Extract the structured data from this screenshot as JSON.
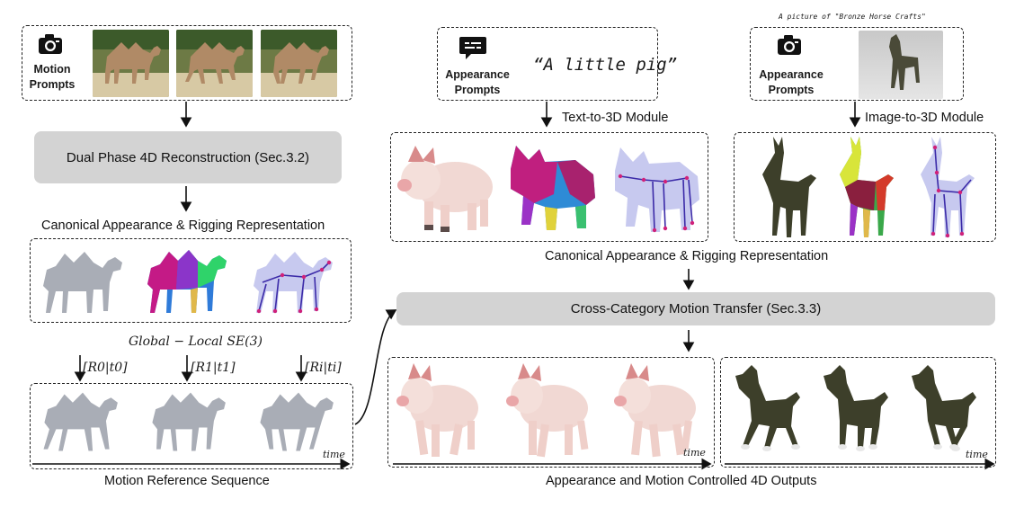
{
  "left": {
    "motion_prompts_label": "Motion\nPrompts",
    "reconstruction_box": "Dual Phase 4D Reconstruction (Sec.3.2)",
    "canonical_label": "Canonical Appearance & Rigging Representation",
    "se3_label": "Global − Local SE(3)",
    "transforms": [
      "[R0|t0]",
      "[R1|t1]",
      "[Ri|ti]"
    ],
    "time_label": "time",
    "sequence_label": "Motion Reference Sequence"
  },
  "middle": {
    "appearance_prompts_label": "Appearance\nPrompts",
    "text_prompt": "“A little pig”",
    "module_label": "Text-to-3D Module"
  },
  "right": {
    "caption": "A picture of \"Bronze Horse Crafts\"",
    "appearance_prompts_label": "Appearance\nPrompts",
    "module_label": "Image-to-3D Module"
  },
  "center": {
    "canonical_label": "Canonical Appearance & Rigging Representation",
    "transfer_box": "Cross-Category Motion Transfer (Sec.3.3)",
    "time_label_a": "time",
    "time_label_b": "time",
    "outputs_label": "Appearance and Motion Controlled 4D Outputs"
  },
  "icons": [
    "camera-icon",
    "text-prompt-icon"
  ],
  "colors": {
    "box_gray": "#d3d3d3",
    "mesh_gray": "#a9adb6",
    "skeleton_fill": "#c7c9ef",
    "skeleton_line": "#3b2aa8",
    "joint": "#d0217a"
  }
}
